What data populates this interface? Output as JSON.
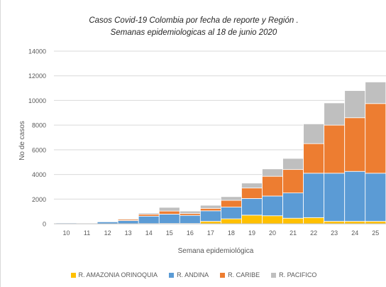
{
  "chart_data": {
    "type": "bar",
    "stacked": true,
    "title": "Casos Covid-19 Colombia por fecha de reporte  y Región .",
    "subtitle": "Semanas epidemiologicas al 18 de junio 2020",
    "xlabel": "Semana epidemiológica",
    "ylabel": "No de casos",
    "ylim": [
      0,
      14000
    ],
    "yticks": [
      "0",
      "2000",
      "4000",
      "6000",
      "8000",
      "10000",
      "12000",
      "14000"
    ],
    "grid": true,
    "legend_position": "bottom",
    "categories": [
      "10",
      "11",
      "12",
      "13",
      "14",
      "15",
      "16",
      "17",
      "18",
      "19",
      "20",
      "21",
      "22",
      "23",
      "24",
      "25"
    ],
    "series": [
      {
        "name": "R. AMAZONIA ORINOQUIA",
        "color": "#ffc000",
        "values": [
          0,
          0,
          0,
          10,
          20,
          30,
          30,
          200,
          400,
          700,
          650,
          450,
          500,
          200,
          200,
          200
        ]
      },
      {
        "name": "R. ANDINA",
        "color": "#5b9bd5",
        "values": [
          60,
          40,
          160,
          250,
          600,
          750,
          650,
          850,
          950,
          1350,
          1600,
          2050,
          3600,
          3900,
          4050,
          3900
        ]
      },
      {
        "name": "R. CARIBE",
        "color": "#ed7d31",
        "values": [
          0,
          0,
          20,
          100,
          150,
          250,
          150,
          200,
          550,
          850,
          1600,
          1900,
          2400,
          3900,
          4350,
          5650
        ]
      },
      {
        "name": "R. PACIFICO",
        "color": "#bfbfbf",
        "values": [
          0,
          0,
          20,
          60,
          100,
          300,
          200,
          250,
          300,
          400,
          600,
          900,
          1600,
          1800,
          2200,
          1750
        ]
      }
    ]
  }
}
